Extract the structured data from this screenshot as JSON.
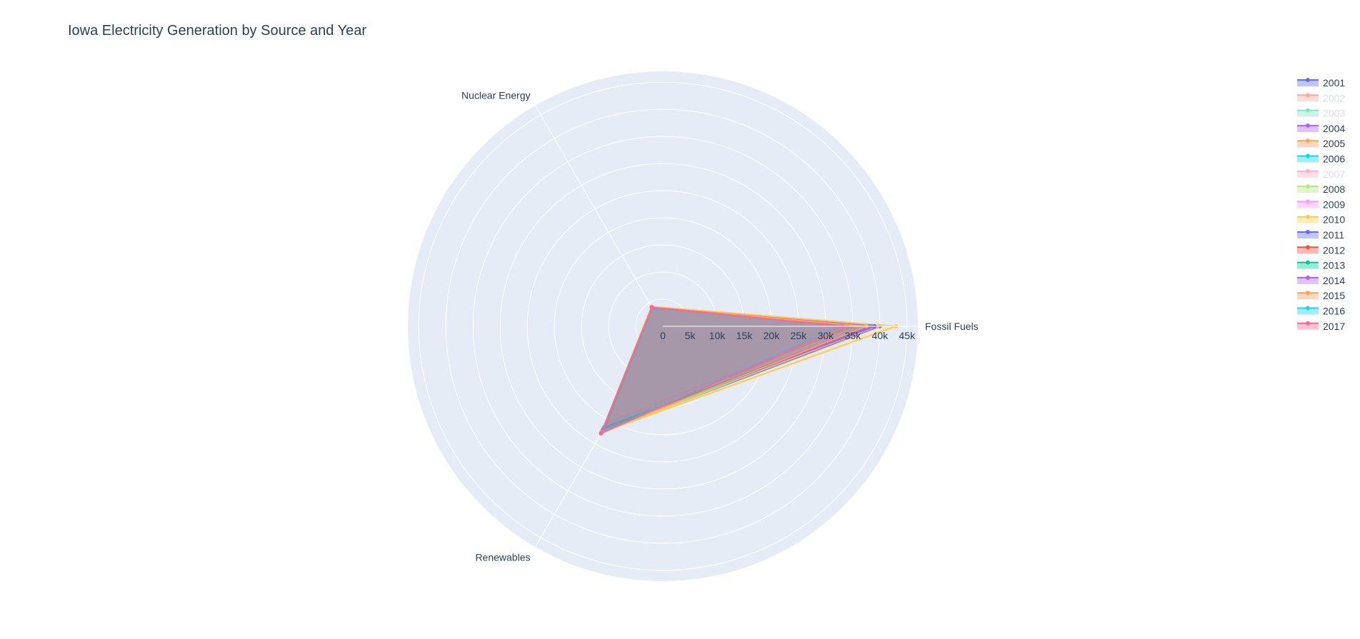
{
  "chart_data": {
    "type": "radar",
    "title": "Iowa Electricity Generation by Source and Year",
    "categories": [
      "Fossil Fuels",
      "Nuclear Energy",
      "Renewables"
    ],
    "radial_range": [
      0,
      47000
    ],
    "radial_ticks": [
      0,
      5000,
      10000,
      15000,
      20000,
      25000,
      30000,
      35000,
      40000,
      45000
    ],
    "radial_tick_labels": [
      "0",
      "5k",
      "10k",
      "15k",
      "20k",
      "25k",
      "30k",
      "35k",
      "40k",
      "45k"
    ],
    "series": [
      {
        "name": "2001",
        "color": "#636efa",
        "values": [
          40000,
          3900,
          22500
        ]
      },
      {
        "name": "2002",
        "color": "#ef553b",
        "values": [
          34500,
          3900,
          22000
        ]
      },
      {
        "name": "2003",
        "color": "#00cc96",
        "values": [
          37500,
          4000,
          21500
        ]
      },
      {
        "name": "2004",
        "color": "#ab63fa",
        "values": [
          37000,
          4000,
          21800
        ]
      },
      {
        "name": "2005",
        "color": "#ffa15a",
        "values": [
          39500,
          3900,
          22300
        ]
      },
      {
        "name": "2006",
        "color": "#19d3f3",
        "values": [
          37500,
          4100,
          21000
        ]
      },
      {
        "name": "2007",
        "color": "#ff6692",
        "values": [
          35000,
          4100,
          20500
        ]
      },
      {
        "name": "2008",
        "color": "#b6e880",
        "values": [
          38500,
          4000,
          22800
        ]
      },
      {
        "name": "2009",
        "color": "#ff97ff",
        "values": [
          37000,
          4200,
          21500
        ]
      },
      {
        "name": "2010",
        "color": "#fecb52",
        "values": [
          43000,
          4200,
          22600
        ]
      },
      {
        "name": "2011",
        "color": "#636efa",
        "values": [
          39000,
          3900,
          21500
        ]
      },
      {
        "name": "2012",
        "color": "#ef553b",
        "values": [
          37500,
          4000,
          22000
        ]
      },
      {
        "name": "2013",
        "color": "#00cc96",
        "values": [
          38000,
          3950,
          21800
        ]
      },
      {
        "name": "2014",
        "color": "#ab63fa",
        "values": [
          38500,
          4000,
          22200
        ]
      },
      {
        "name": "2015",
        "color": "#ffa15a",
        "values": [
          37500,
          4000,
          22500
        ]
      },
      {
        "name": "2016",
        "color": "#19d3f3",
        "values": [
          32500,
          4000,
          22700
        ]
      },
      {
        "name": "2017",
        "color": "#ff6692",
        "values": [
          33000,
          4050,
          22800
        ]
      }
    ],
    "legend_inactive": [
      "2002",
      "2003",
      "2007"
    ],
    "legend_position": "top-right",
    "grid": true
  }
}
